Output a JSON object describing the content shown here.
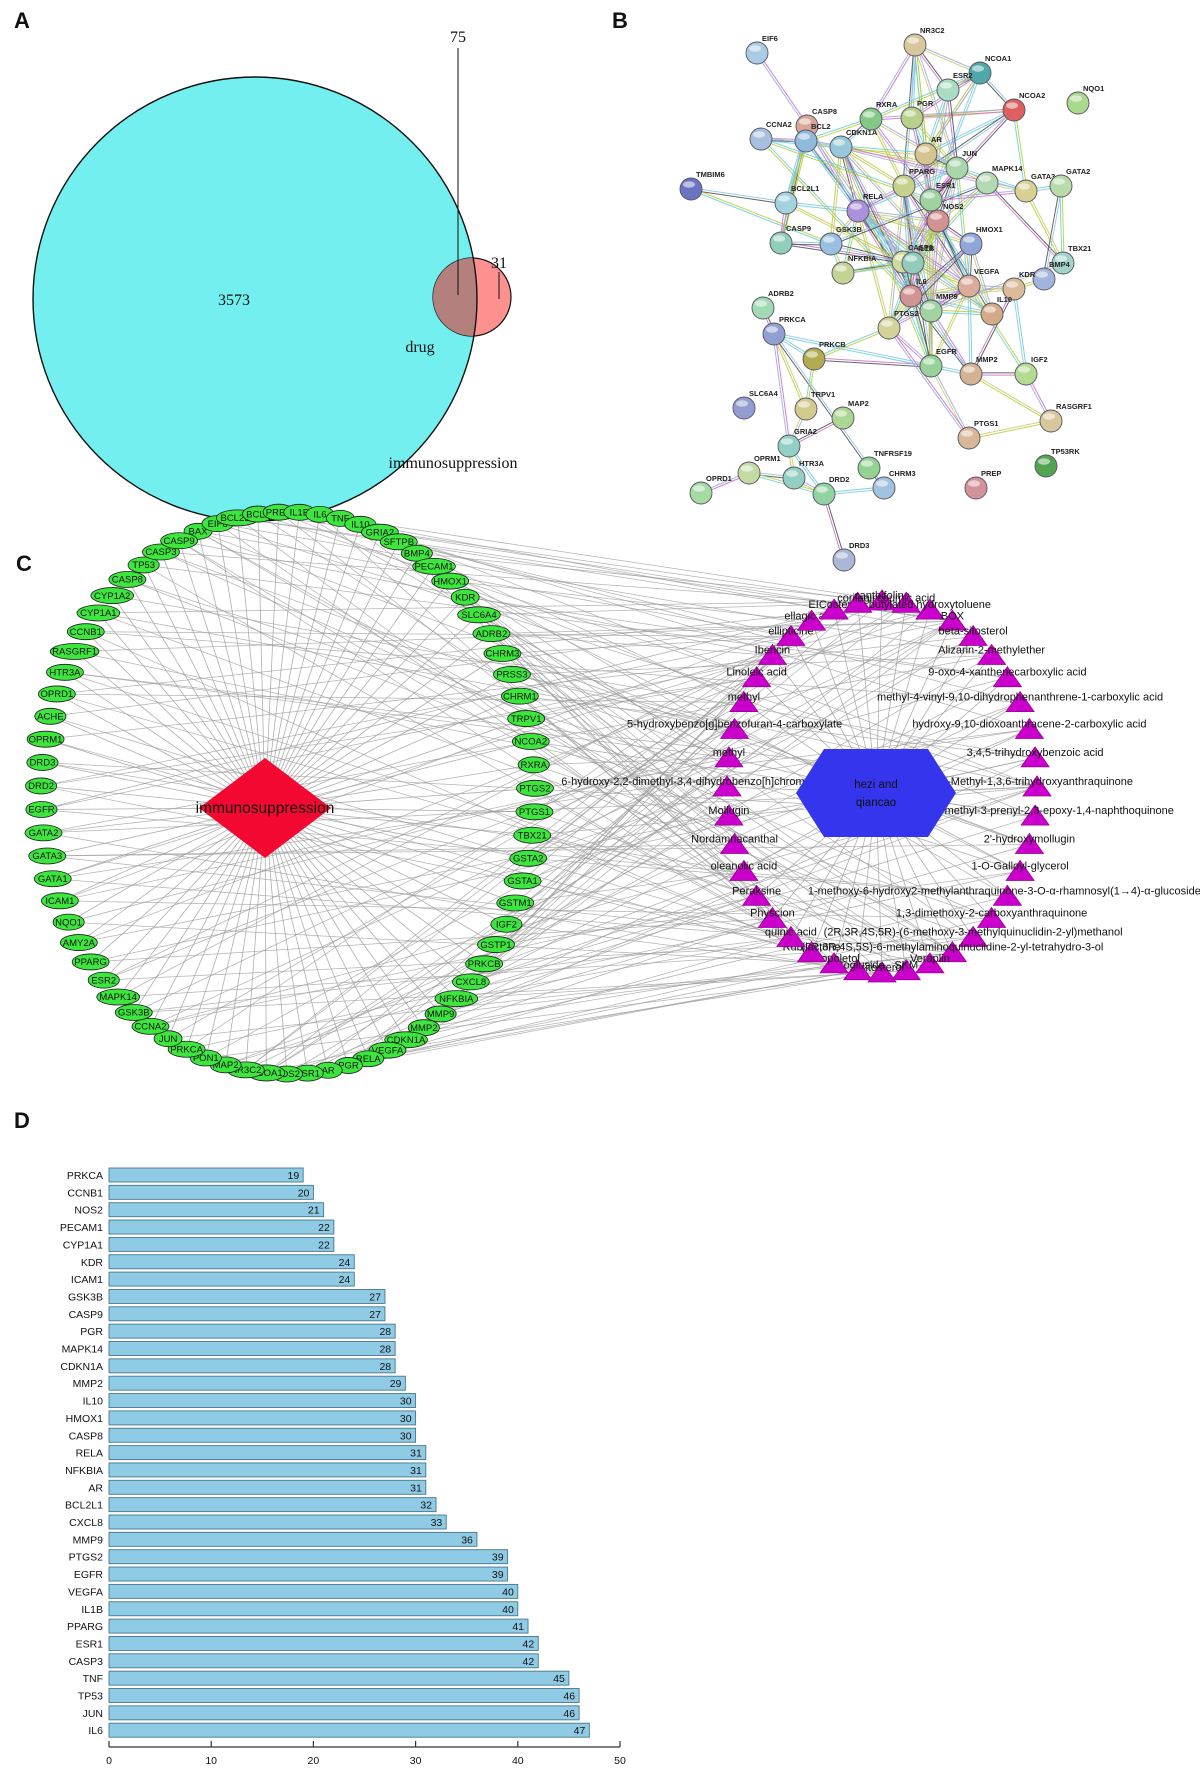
{
  "panels": {
    "a": "A",
    "b": "B",
    "c": "C",
    "d": "D"
  },
  "venn": {
    "big_label": "immunosuppression",
    "big_value": "3573",
    "overlap_value": "75",
    "small_label": "drug",
    "small_value": "31",
    "big_color": "#73efef",
    "overlap_color": "#b3807e",
    "small_color": "#ff9090"
  },
  "string_network": {
    "palette": [
      "#d06ad0",
      "#89c3e6",
      "#b8cc33",
      "#9aa7dd",
      "#4a4a4a",
      "#63cfd4",
      "#c9c96a"
    ],
    "nodes": [
      [
        "EIF6",
        757,
        53,
        "#a9cbe3"
      ],
      [
        "NR3C2",
        915,
        45,
        "#d8c79c"
      ],
      [
        "NCOA1",
        980,
        73,
        "#4fa8a8"
      ],
      [
        "ESR2",
        948,
        90,
        "#a9dcc3"
      ],
      [
        "NCOA2",
        1014,
        110,
        "#dd5f5f"
      ],
      [
        "NQO1",
        1078,
        103,
        "#a9d88f"
      ],
      [
        "RXRA",
        871,
        119,
        "#85c885"
      ],
      [
        "PGR",
        912,
        118,
        "#b9d08d"
      ],
      [
        "CASP8",
        807,
        126,
        "#d8a79a"
      ],
      [
        "CCNA2",
        761,
        139,
        "#a6c0dd"
      ],
      [
        "BCL2",
        806,
        141,
        "#8fb9dd"
      ],
      [
        "CDKN1A",
        841,
        147,
        "#97c9da"
      ],
      [
        "AR",
        926,
        154,
        "#d5c390"
      ],
      [
        "JUN",
        957,
        168,
        "#a8d6a8"
      ],
      [
        "TMBIM6",
        691,
        189,
        "#6a74c4"
      ],
      [
        "PPARG",
        904,
        186,
        "#c6d18c"
      ],
      [
        "ESR1",
        931,
        200,
        "#9ed29e"
      ],
      [
        "MAPK14",
        987,
        183,
        "#b3dab3"
      ],
      [
        "GATA3",
        1026,
        191,
        "#d6d092"
      ],
      [
        "GATA2",
        1061,
        186,
        "#b8dba8"
      ],
      [
        "BCL2L1",
        786,
        203,
        "#a2d3de"
      ],
      [
        "RELA",
        858,
        211,
        "#ab91da"
      ],
      [
        "NOS2",
        938,
        221,
        "#d29292"
      ],
      [
        "CASP9",
        781,
        243,
        "#92cfbb"
      ],
      [
        "GSK3B",
        831,
        244,
        "#99c0e0"
      ],
      [
        "CASP3",
        903,
        262,
        "#cedb9d"
      ],
      [
        "NFKBIA",
        843,
        273,
        "#c3d393"
      ],
      [
        "IL1B",
        913,
        263,
        "#92cbbb"
      ],
      [
        "HMOX1",
        971,
        244,
        "#92a6da"
      ],
      [
        "TBX21",
        1063,
        263,
        "#a2d3cb"
      ],
      [
        "BMP4",
        1044,
        279,
        "#a2b3de"
      ],
      [
        "VEGFA",
        969,
        286,
        "#dbab9b"
      ],
      [
        "KDR",
        1014,
        289,
        "#dbbb99"
      ],
      [
        "IL6",
        911,
        296,
        "#d29393"
      ],
      [
        "IL10",
        992,
        314,
        "#d3ab8b"
      ],
      [
        "MMP9",
        931,
        311,
        "#a2d2a2"
      ],
      [
        "PTGS2",
        889,
        328,
        "#d2d299"
      ],
      [
        "ADRB2",
        763,
        308,
        "#a2dbb3"
      ],
      [
        "PRKCA",
        774,
        334,
        "#929fd3"
      ],
      [
        "PRKCB",
        814,
        359,
        "#b3ab52"
      ],
      [
        "EGFR",
        931,
        366,
        "#99d299"
      ],
      [
        "MMP2",
        971,
        374,
        "#d3b393"
      ],
      [
        "IGF2",
        1026,
        374,
        "#b3db93"
      ],
      [
        "SLC6A4",
        744,
        408,
        "#939cce"
      ],
      [
        "TRPV1",
        806,
        409,
        "#d2cb8d"
      ],
      [
        "MAP2",
        843,
        418,
        "#abd792"
      ],
      [
        "GRIA2",
        789,
        446,
        "#92cfc7"
      ],
      [
        "OPRM1",
        749,
        473,
        "#c3dba3"
      ],
      [
        "OPRD1",
        701,
        493,
        "#a3dba3"
      ],
      [
        "HTR3A",
        794,
        478,
        "#93cfc3"
      ],
      [
        "DRD2",
        824,
        494,
        "#92d2a2"
      ],
      [
        "CHRM3",
        884,
        488,
        "#a2c3de"
      ],
      [
        "TNFRSF19",
        869,
        468,
        "#93d293"
      ],
      [
        "PTGS1",
        969,
        438,
        "#d7b797"
      ],
      [
        "RASGRF1",
        1051,
        421,
        "#d7c79b"
      ],
      [
        "TP53RK",
        1046,
        466,
        "#52a452"
      ],
      [
        "PREP",
        976,
        488,
        "#d29299"
      ],
      [
        "DRD3",
        844,
        560,
        "#abb7d7"
      ]
    ],
    "edges": [
      [
        "EIF6",
        "CASP8"
      ],
      [
        "TMBIM6",
        "BCL2L1"
      ],
      [
        "TMBIM6",
        "GSK3B"
      ],
      [
        "NR3C2",
        "NCOA1"
      ],
      [
        "NR3C2",
        "ESR2"
      ],
      [
        "NR3C2",
        "PGR"
      ],
      [
        "NR3C2",
        "AR"
      ],
      [
        "NR3C2",
        "RXRA"
      ],
      [
        "NR3C2",
        "PPARG"
      ],
      [
        "NR3C2",
        "ESR1"
      ],
      [
        "NR3C2",
        "JUN"
      ],
      [
        "NCOA1",
        "ESR2"
      ],
      [
        "NCOA1",
        "ESR1"
      ],
      [
        "NCOA1",
        "AR"
      ],
      [
        "NCOA1",
        "PGR"
      ],
      [
        "NCOA1",
        "NCOA2"
      ],
      [
        "NCOA1",
        "RXRA"
      ],
      [
        "NCOA1",
        "PPARG"
      ],
      [
        "NCOA2",
        "ESR1"
      ],
      [
        "NCOA2",
        "AR"
      ],
      [
        "NCOA2",
        "PGR"
      ],
      [
        "NCOA2",
        "RXRA"
      ],
      [
        "NCOA2",
        "PPARG"
      ],
      [
        "NCOA2",
        "GATA3"
      ],
      [
        "ESR2",
        "ESR1"
      ],
      [
        "ESR2",
        "JUN"
      ],
      [
        "ESR2",
        "AR"
      ],
      [
        "RXRA",
        "PPARG"
      ],
      [
        "RXRA",
        "ESR1"
      ],
      [
        "RXRA",
        "CDKN1A"
      ],
      [
        "RXRA",
        "BCL2"
      ],
      [
        "RXRA",
        "JUN"
      ],
      [
        "PGR",
        "ESR1"
      ],
      [
        "PGR",
        "AR"
      ],
      [
        "PGR",
        "JUN"
      ],
      [
        "AR",
        "ESR1"
      ],
      [
        "AR",
        "JUN"
      ],
      [
        "AR",
        "CDKN1A"
      ],
      [
        "AR",
        "EGFR"
      ],
      [
        "JUN",
        "ESR1"
      ],
      [
        "JUN",
        "RELA"
      ],
      [
        "JUN",
        "MAPK14"
      ],
      [
        "JUN",
        "NOS2"
      ],
      [
        "JUN",
        "IL6"
      ],
      [
        "JUN",
        "VEGFA"
      ],
      [
        "JUN",
        "MMP9"
      ],
      [
        "JUN",
        "CASP3"
      ],
      [
        "JUN",
        "GATA3"
      ],
      [
        "JUN",
        "CDKN1A"
      ],
      [
        "PPARG",
        "RELA"
      ],
      [
        "PPARG",
        "NOS2"
      ],
      [
        "PPARG",
        "IL6"
      ],
      [
        "PPARG",
        "PTGS2"
      ],
      [
        "PPARG",
        "VEGFA"
      ],
      [
        "PPARG",
        "MMP9"
      ],
      [
        "PPARG",
        "CDKN1A"
      ],
      [
        "PPARG",
        "IL1B"
      ],
      [
        "PPARG",
        "EGFR"
      ],
      [
        "RELA",
        "NFKBIA"
      ],
      [
        "RELA",
        "NOS2"
      ],
      [
        "RELA",
        "IL6"
      ],
      [
        "RELA",
        "IL1B"
      ],
      [
        "RELA",
        "PTGS2"
      ],
      [
        "RELA",
        "VEGFA"
      ],
      [
        "RELA",
        "MMP9"
      ],
      [
        "RELA",
        "IL10"
      ],
      [
        "RELA",
        "GSK3B"
      ],
      [
        "RELA",
        "CDKN1A"
      ],
      [
        "RELA",
        "BCL2L1"
      ],
      [
        "RELA",
        "HMOX1"
      ],
      [
        "RELA",
        "CASP8"
      ],
      [
        "RELA",
        "BCL2"
      ],
      [
        "NOS2",
        "IL6"
      ],
      [
        "NOS2",
        "IL1B"
      ],
      [
        "NOS2",
        "HMOX1"
      ],
      [
        "NOS2",
        "VEGFA"
      ],
      [
        "NOS2",
        "PTGS2"
      ],
      [
        "NOS2",
        "MMP9"
      ],
      [
        "NOS2",
        "IL10"
      ],
      [
        "NOS2",
        "CASP3"
      ],
      [
        "NOS2",
        "MAPK14"
      ],
      [
        "IL6",
        "IL1B"
      ],
      [
        "IL6",
        "IL10"
      ],
      [
        "IL6",
        "VEGFA"
      ],
      [
        "IL6",
        "MMP9"
      ],
      [
        "IL6",
        "MMP2"
      ],
      [
        "IL6",
        "EGFR"
      ],
      [
        "IL6",
        "KDR"
      ],
      [
        "IL6",
        "HMOX1"
      ],
      [
        "IL6",
        "CASP3"
      ],
      [
        "IL6",
        "PTGS2"
      ],
      [
        "IL6",
        "ESR1"
      ],
      [
        "IL6",
        "CDKN1A"
      ],
      [
        "IL6",
        "CCNA2"
      ],
      [
        "IL1B",
        "IL10"
      ],
      [
        "IL1B",
        "MMP9"
      ],
      [
        "IL1B",
        "PTGS2"
      ],
      [
        "IL1B",
        "VEGFA"
      ],
      [
        "IL1B",
        "CASP3"
      ],
      [
        "IL1B",
        "NFKBIA"
      ],
      [
        "IL1B",
        "MAPK14"
      ],
      [
        "VEGFA",
        "KDR"
      ],
      [
        "VEGFA",
        "MMP9"
      ],
      [
        "VEGFA",
        "MMP2"
      ],
      [
        "VEGFA",
        "EGFR"
      ],
      [
        "VEGFA",
        "PTGS2"
      ],
      [
        "VEGFA",
        "HMOX1"
      ],
      [
        "VEGFA",
        "IGF2"
      ],
      [
        "VEGFA",
        "CDKN1A"
      ],
      [
        "KDR",
        "MMP2"
      ],
      [
        "KDR",
        "IGF2"
      ],
      [
        "KDR",
        "BMP4"
      ],
      [
        "MMP9",
        "MMP2"
      ],
      [
        "MMP9",
        "EGFR"
      ],
      [
        "MMP9",
        "IL10"
      ],
      [
        "MMP9",
        "TBX21"
      ],
      [
        "MMP2",
        "IGF2"
      ],
      [
        "MMP2",
        "EGFR"
      ],
      [
        "MMP2",
        "RASGRF1"
      ],
      [
        "EGFR",
        "PTGS2"
      ],
      [
        "EGFR",
        "CASP3"
      ],
      [
        "EGFR",
        "CDKN1A"
      ],
      [
        "EGFR",
        "PTGS1"
      ],
      [
        "EGFR",
        "PRKCB"
      ],
      [
        "EGFR",
        "PRKCA"
      ],
      [
        "EGFR",
        "ESR1"
      ],
      [
        "PTGS2",
        "PTGS1"
      ],
      [
        "PTGS2",
        "HMOX1"
      ],
      [
        "PTGS2",
        "PRKCB"
      ],
      [
        "CASP3",
        "CASP8"
      ],
      [
        "CASP3",
        "CASP9"
      ],
      [
        "CASP3",
        "BCL2"
      ],
      [
        "CASP3",
        "BCL2L1"
      ],
      [
        "CASP3",
        "CDKN1A"
      ],
      [
        "CASP3",
        "GSK3B"
      ],
      [
        "CASP3",
        "NFKBIA"
      ],
      [
        "CASP8",
        "BCL2"
      ],
      [
        "CASP8",
        "CASP9"
      ],
      [
        "CASP8",
        "BCL2L1"
      ],
      [
        "CASP9",
        "BCL2"
      ],
      [
        "CASP9",
        "BCL2L1"
      ],
      [
        "CASP9",
        "GSK3B"
      ],
      [
        "BCL2",
        "BCL2L1"
      ],
      [
        "BCL2",
        "CDKN1A"
      ],
      [
        "BCL2",
        "CCNA2"
      ],
      [
        "CDKN1A",
        "CCNA2"
      ],
      [
        "CDKN1A",
        "GSK3B"
      ],
      [
        "CDKN1A",
        "MAPK14"
      ],
      [
        "GSK3B",
        "MAPK14"
      ],
      [
        "GSK3B",
        "NFKBIA"
      ],
      [
        "MAPK14",
        "GATA3"
      ],
      [
        "MAPK14",
        "TBX21"
      ],
      [
        "GATA3",
        "GATA2"
      ],
      [
        "GATA3",
        "TBX21"
      ],
      [
        "GATA3",
        "ESR1"
      ],
      [
        "GATA2",
        "BMP4"
      ],
      [
        "GATA2",
        "TBX21"
      ],
      [
        "HMOX1",
        "IL10"
      ],
      [
        "ADRB2",
        "PRKCA"
      ],
      [
        "PRKCA",
        "PRKCB"
      ],
      [
        "PRKCA",
        "TRPV1"
      ],
      [
        "PRKCA",
        "GRIA2"
      ],
      [
        "PRKCA",
        "CHRM3"
      ],
      [
        "PRKCB",
        "TRPV1"
      ],
      [
        "TRPV1",
        "GRIA2"
      ],
      [
        "GRIA2",
        "MAP2"
      ],
      [
        "GRIA2",
        "DRD2"
      ],
      [
        "GRIA2",
        "HTR3A"
      ],
      [
        "OPRM1",
        "OPRD1"
      ],
      [
        "OPRM1",
        "HTR3A"
      ],
      [
        "OPRM1",
        "DRD2"
      ],
      [
        "HTR3A",
        "DRD2"
      ],
      [
        "DRD2",
        "DRD3"
      ],
      [
        "DRD2",
        "CHRM3"
      ],
      [
        "PTGS1",
        "RASGRF1"
      ],
      [
        "IGF2",
        "RASGRF1"
      ],
      [
        "ESR1",
        "VEGFA"
      ],
      [
        "ESR1",
        "CCNA2"
      ],
      [
        "ESR1",
        "CASP3"
      ]
    ]
  },
  "bipartite": {
    "disease_label": "immunosuppression",
    "disease_color": "#f20830",
    "herb_label": [
      "hezi and",
      "qiancao"
    ],
    "herb_color": "#3535ee",
    "gene_fill": "#3ce63c",
    "triangle_fill": "#cc00cc",
    "edge_color": "#9b9b9b",
    "genes": [
      "BAX",
      "EIF6",
      "BCL2L1",
      "BCL2",
      "PREP",
      "IL1B",
      "IL6",
      "TNF",
      "IL10",
      "GRIA2",
      "SFTPB",
      "BMP4",
      "PECAM1",
      "HMOX1",
      "KDR",
      "SLC6A4",
      "ADRB2",
      "CHRM3",
      "PRSS3",
      "CHRM1",
      "TRPV1",
      "NCOA2",
      "RXRA",
      "PTGS2",
      "PTGS1",
      "TBX21",
      "GSTA2",
      "GSTA1",
      "GSTM1",
      "IGF2",
      "GSTP1",
      "PRKCB",
      "CXCL8",
      "NFKBIA",
      "MMP9",
      "MMP2",
      "CDKN1A",
      "VEGFA",
      "RELA",
      "PGR",
      "AR",
      "ESR1",
      "NOS2",
      "NCOA1",
      "NR3C2",
      "MAP2",
      "PON1",
      "PRKCA",
      "JUN",
      "CCNA2",
      "GSK3B",
      "MAPK14",
      "ESR2",
      "PPARG",
      "AMY2A",
      "NQO1",
      "ICAM1",
      "GATA1",
      "GATA3",
      "GATA2",
      "EGFR",
      "DRD2",
      "DRD3",
      "OPRM1",
      "ACHE",
      "OPRD1",
      "HTR3A",
      "RASGRF1",
      "CCNB1",
      "CYP1A1",
      "CYP1A2",
      "CASP8",
      "TP53",
      "CASP3",
      "CASP9"
    ],
    "compounds": [
      "ellipticine",
      "ellagic acid",
      "EICosterol",
      "corilagin",
      "canthifoline",
      "coumic acid",
      "butylated hydroxytoluene",
      "BOX",
      "beta-sitosterol",
      "Alizarin-2-methylether",
      "9-oxo-4-xanthenecarboxylic acid",
      "methyl-4-vinyl-9,10-dihydrophenanthrene-1-carboxylic acid",
      "hydroxy-9,10-dioxoanthracene-2-carboxylic acid",
      "3,4,5-trihydroxybenzoic acid",
      "2-Methyl-1,3,6-trihydroxyanthraquinone",
      "2-carboxymethyl-3-prenyl-2,3-epoxy-1,4-naphthoquinone",
      "2'-hydroxymollugin",
      "1-O-Galloyl-glycerol",
      "1-methoxy-6-hydroxy2-methylanthraquinone-3-O-α-rhamnosyl(1→4)-α-glucoside_",
      "1,3-dimethoxy-2-carboxyanthraquinone",
      "(2R,3R,4S,5R)-(6-methoxy-3-methylquinuclidin-2-yl)methanol",
      "(2R,3R,4S,5S)-6-methylaminoquinuclidine-2-yl-tetrahydro-3-ol",
      "Veraplin",
      "SKM",
      "sitosterol",
      "Sitogluside",
      "Scopoletol",
      "Rubilactone",
      "quinic acid",
      "Physcion",
      "Peraksine",
      "oleanolic acid",
      "Nordamnacanthal",
      "Mollugin",
      "6-hydroxy-2,2-dimethyl-3,4-dihydrobenzo[h]chromene-5-carboxylate",
      "methyl",
      "5-hydroxybenzo[g]benzofuran-4-carboxylate",
      "methyl",
      "Linoleic acid",
      "Ibericin"
    ]
  },
  "chart_data": {
    "type": "bar",
    "orientation": "horizontal",
    "title": "",
    "xlabel": "",
    "ylabel": "",
    "xlim": [
      0,
      50
    ],
    "xticks": [
      0,
      10,
      20,
      30,
      40,
      50
    ],
    "grid": false,
    "bar_color": "#8fcbe4",
    "bar_stroke": "#46788e",
    "categories": [
      "PRKCA",
      "CCNB1",
      "NOS2",
      "PECAM1",
      "CYP1A1",
      "KDR",
      "ICAM1",
      "GSK3B",
      "CASP9",
      "PGR",
      "MAPK14",
      "CDKN1A",
      "MMP2",
      "IL10",
      "HMOX1",
      "CASP8",
      "RELA",
      "NFKBIA",
      "AR",
      "BCL2L1",
      "CXCL8",
      "MMP9",
      "PTGS2",
      "EGFR",
      "VEGFA",
      "IL1B",
      "PPARG",
      "ESR1",
      "CASP3",
      "TNF",
      "TP53",
      "JUN",
      "IL6"
    ],
    "values": [
      19,
      20,
      21,
      22,
      22,
      24,
      24,
      27,
      27,
      28,
      28,
      28,
      29,
      30,
      30,
      30,
      31,
      31,
      31,
      32,
      33,
      36,
      39,
      39,
      40,
      40,
      41,
      42,
      42,
      45,
      46,
      46,
      47
    ]
  }
}
